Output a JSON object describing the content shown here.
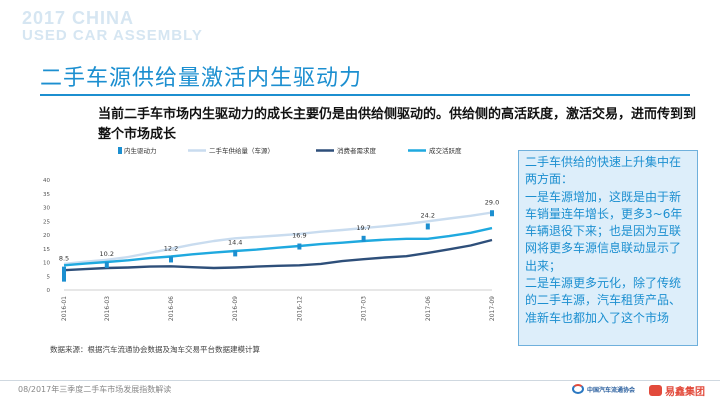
{
  "event": {
    "line1": "2017 CHINA",
    "line2": "USED CAR ASSEMBLY"
  },
  "title": "二手车源供给量激活内生驱动力",
  "summary": "当前二手车市场内生驱动力的成长主要仍是由供给侧驱动的。供给侧的高活跃度，激活交易，进而传到到整个市场成长",
  "note": "二手车供给的快速上升集中在两方面：\n一是车源增加，这既是由于新车销量连年增长，更多3~6年车辆退役下来；也是因为互联网将更多车源信息联动显示了出来；\n二是车源更多元化，除了传统的二手车源，汽车租赁产品、准新车也都加入了这个市场",
  "source": "数据来源：根据汽车流通协会数据及淘车交易平台数据建模计算",
  "footer": "08/2017年三季度二手车市场发展指数解读",
  "org_logo": "中国汽车流通协会",
  "brand_logo": "易鑫集团",
  "colors": {
    "accent": "#1c8fd0",
    "bar": "#1c8fd0",
    "supply": "#c9dcef",
    "demand": "#2e4f7a",
    "activity": "#1fa9df"
  },
  "chart_data": {
    "type": "line",
    "x": [
      "2016-01",
      "2016-02",
      "2016-03",
      "2016-04",
      "2016-05",
      "2016-06",
      "2016-07",
      "2016-08",
      "2016-09",
      "2016-10",
      "2016-11",
      "2016-12",
      "2017-01",
      "2017-02",
      "2017-03",
      "2017-04",
      "2017-05",
      "2017-06",
      "2017-07",
      "2017-08",
      "2017-09"
    ],
    "x_tick_labels": [
      "2016-01",
      "2016-03",
      "2016-06",
      "2016-09",
      "2016-12",
      "2017-03",
      "2017-06",
      "2017-09"
    ],
    "ylim": [
      0,
      40
    ],
    "yticks": [
      0,
      5,
      10,
      15,
      20,
      25,
      30,
      35,
      40
    ],
    "grid": false,
    "legend": "top",
    "bars": {
      "name": "内生驱动力",
      "points": [
        {
          "x": "2016-01",
          "value": 8.5
        },
        {
          "x": "2016-03",
          "value": 10.2
        },
        {
          "x": "2016-06",
          "value": 12.2
        },
        {
          "x": "2016-09",
          "value": 14.4
        },
        {
          "x": "2016-12",
          "value": 16.9
        },
        {
          "x": "2017-03",
          "value": 19.7
        },
        {
          "x": "2017-06",
          "value": 24.2
        },
        {
          "x": "2017-09",
          "value": 29.0
        }
      ]
    },
    "series": [
      {
        "name": "二手车供给量（车源）",
        "key": "supply",
        "values": [
          9.5,
          10.3,
          11,
          12,
          13.5,
          15,
          16.5,
          17.8,
          18.8,
          19.3,
          19.8,
          20.4,
          21.2,
          21.8,
          22.5,
          23.2,
          24.0,
          25.0,
          26.0,
          27.0,
          28.2
        ]
      },
      {
        "name": "消费者需求度",
        "key": "demand",
        "values": [
          7.2,
          7.6,
          8.0,
          8.2,
          8.5,
          8.6,
          8.3,
          8.0,
          8.2,
          8.5,
          8.8,
          9.0,
          9.5,
          10.5,
          11.2,
          11.8,
          12.3,
          13.5,
          14.8,
          16.2,
          18.2
        ]
      },
      {
        "name": "成交活跃度",
        "key": "activity",
        "values": [
          9.0,
          9.6,
          10.2,
          10.8,
          11.6,
          12.2,
          13.0,
          13.6,
          14.2,
          14.7,
          15.4,
          16.0,
          16.7,
          17.2,
          17.8,
          18.3,
          18.6,
          18.6,
          19.6,
          20.8,
          22.5
        ]
      }
    ]
  }
}
